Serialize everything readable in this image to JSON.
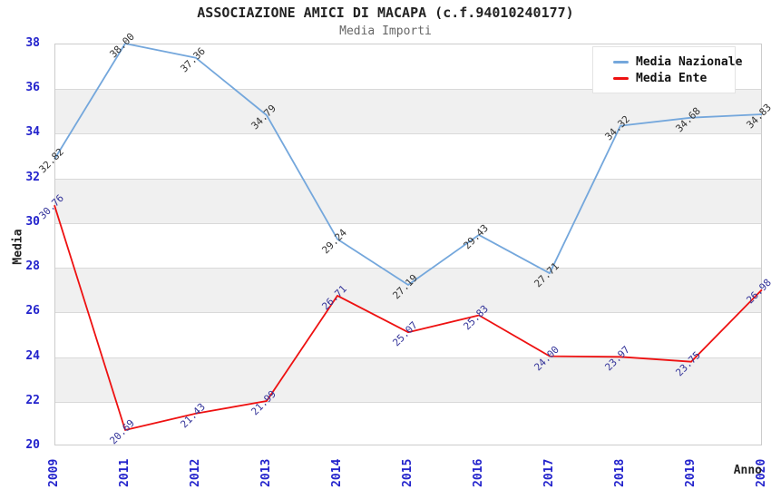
{
  "chart_data": {
    "type": "line",
    "title": "ASSOCIAZIONE AMICI DI MACAPA (c.f.94010240177)",
    "subtitle": "Media Importi",
    "xlabel": "Anno",
    "ylabel": "Media",
    "categories": [
      "2009",
      "2011",
      "2012",
      "2013",
      "2014",
      "2015",
      "2016",
      "2017",
      "2018",
      "2019",
      "2020"
    ],
    "series": [
      {
        "name": "Media Nazionale",
        "color": "#74a7dc",
        "value_label_color": "#333333",
        "values": [
          32.82,
          38.0,
          37.36,
          34.79,
          29.24,
          27.19,
          29.43,
          27.71,
          34.32,
          34.68,
          34.83
        ]
      },
      {
        "name": "Media Ente",
        "color": "#ee1111",
        "value_label_color": "#333399",
        "values": [
          30.76,
          20.69,
          21.43,
          21.99,
          26.71,
          25.07,
          25.83,
          24.0,
          23.97,
          23.75,
          26.98
        ]
      }
    ],
    "ylim": [
      20,
      38
    ],
    "yticks": [
      20,
      22,
      24,
      26,
      28,
      30,
      32,
      34,
      36,
      38
    ],
    "band_ranges": [
      [
        22,
        24
      ],
      [
        26,
        28
      ],
      [
        30,
        32
      ],
      [
        34,
        36
      ]
    ],
    "grid": true,
    "legend_position": "top-right",
    "value_label_rotation": -45,
    "x_tick_rotation": -90
  },
  "colors": {
    "tick_label": "#2222cc",
    "band": "#f0f0f0",
    "grid_line": "#d9d9d9",
    "plot_border": "#cccccc",
    "title": "#222222",
    "subtitle": "#666666",
    "legend_text": "#111111",
    "background": "#ffffff"
  }
}
